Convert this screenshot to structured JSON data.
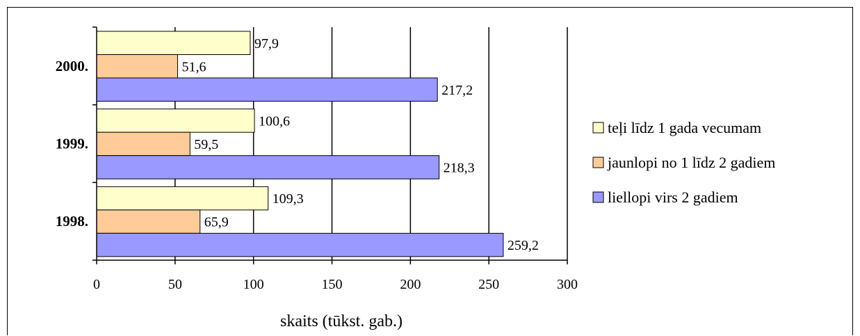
{
  "chart_data": {
    "type": "bar",
    "orientation": "horizontal",
    "categories": [
      "2000.",
      "1999.",
      "1998."
    ],
    "series": [
      {
        "name": "teļi līdz 1 gada vecumam",
        "values": [
          97.9,
          100.6,
          109.3
        ],
        "color": "#FFFFCC"
      },
      {
        "name": "jaunlopi no 1 līdz 2 gadiem",
        "values": [
          51.6,
          59.5,
          65.9
        ],
        "color": "#FFCC99"
      },
      {
        "name": "liellopi virs 2 gadiem",
        "values": [
          217.2,
          218.3,
          259.2
        ],
        "color": "#9999FF"
      }
    ],
    "value_labels": [
      [
        "97,9",
        "100,6",
        "109,3"
      ],
      [
        "51,6",
        "59,5",
        "65,9"
      ],
      [
        "217,2",
        "218,3",
        "259,2"
      ]
    ],
    "xlabel": "skaits (tūkst. gab.)",
    "ylabel": "",
    "title": "",
    "xlim": [
      0,
      300
    ],
    "xticks": [
      0,
      50,
      100,
      150,
      200,
      250,
      300
    ],
    "grid": "vertical",
    "legend_position": "right"
  }
}
